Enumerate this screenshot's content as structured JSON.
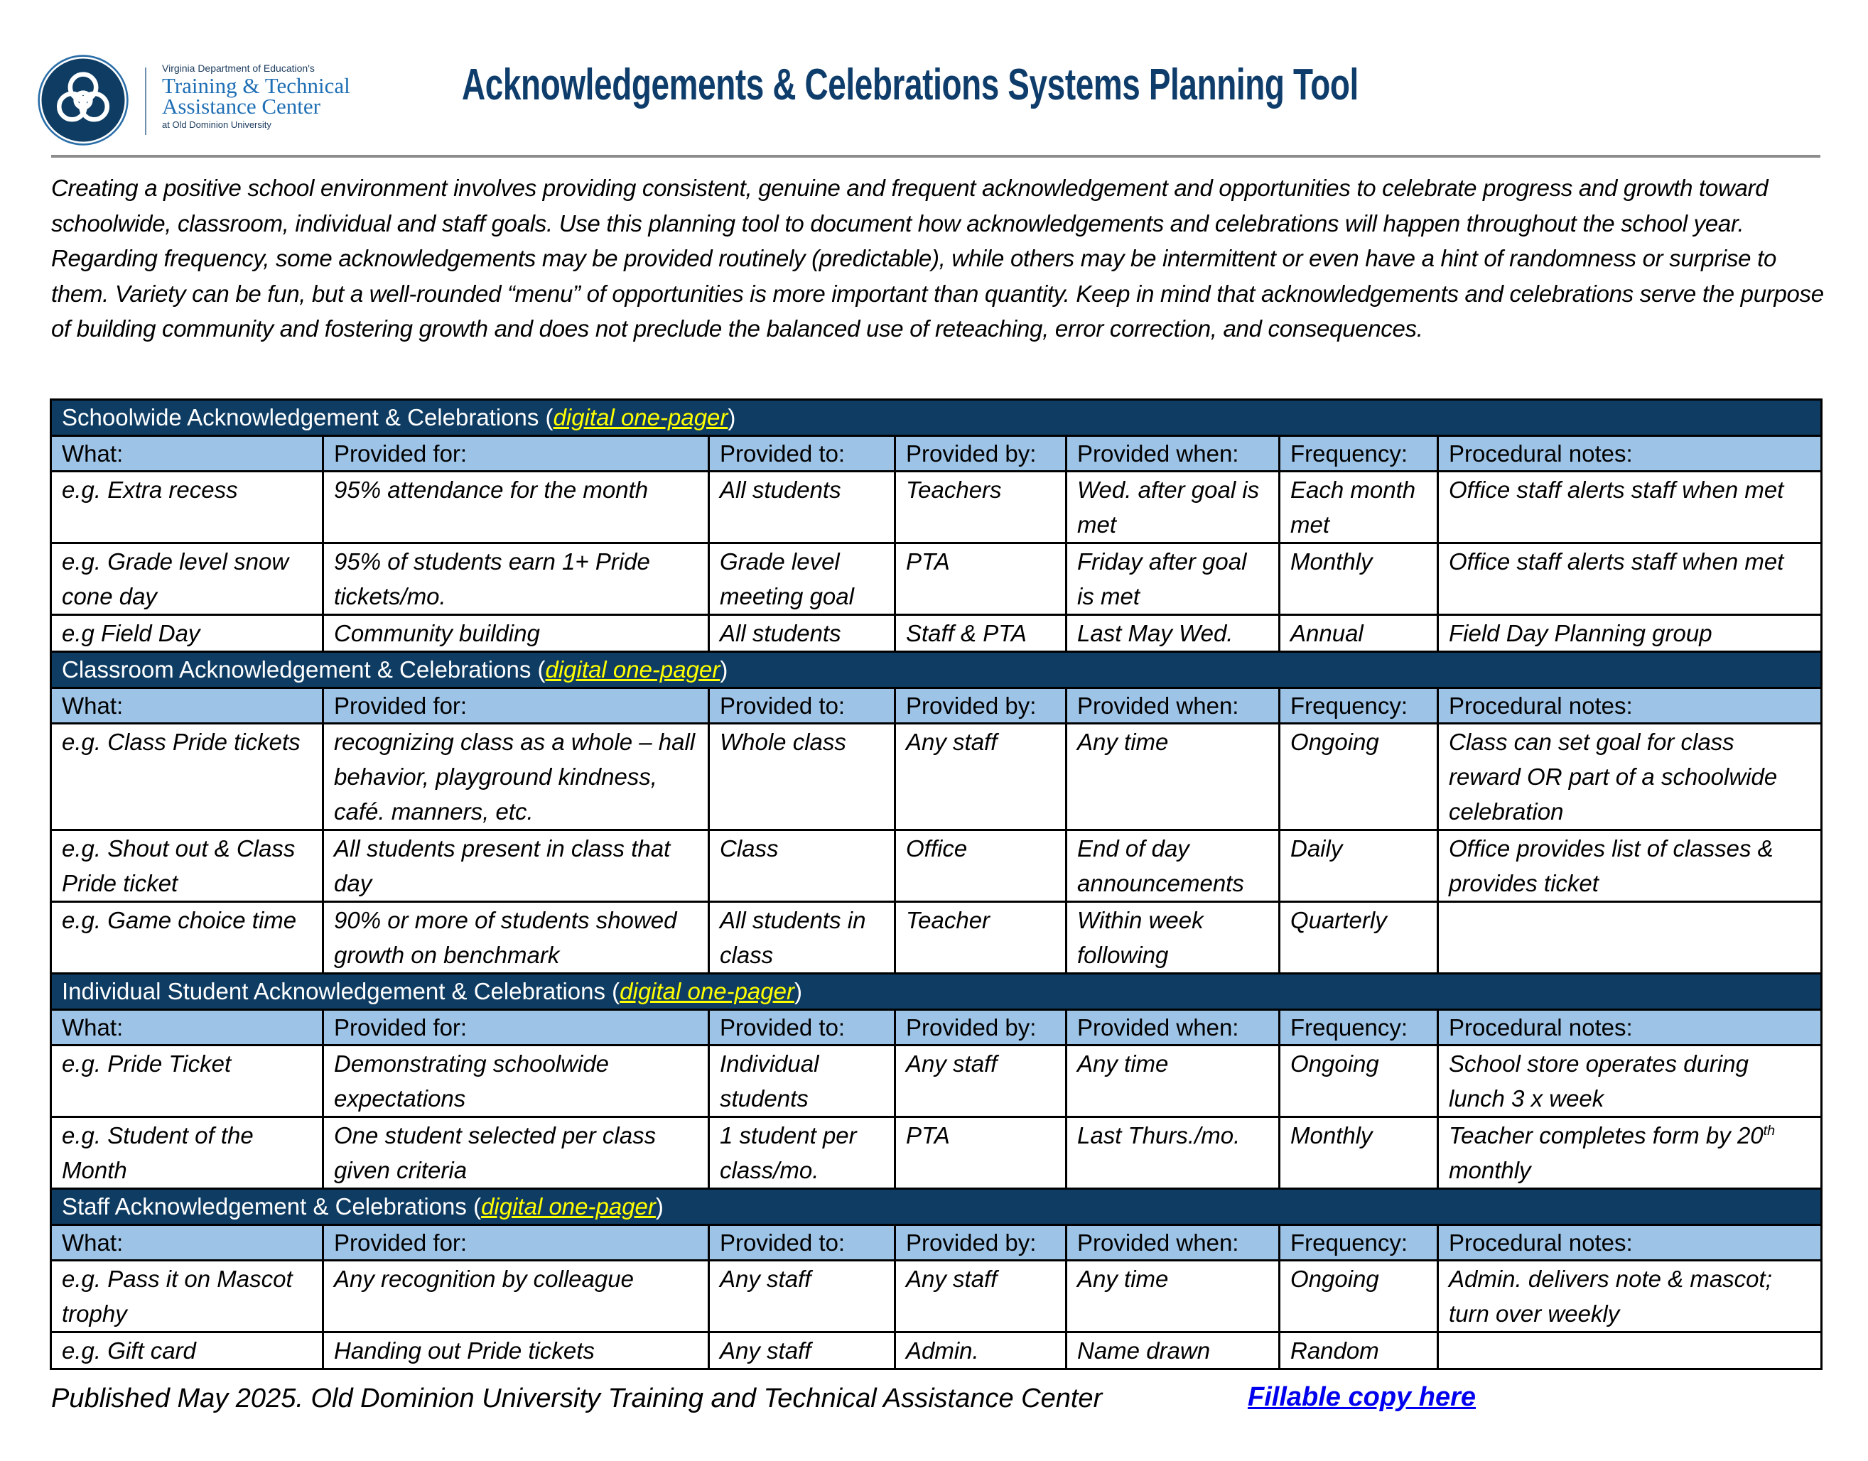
{
  "header": {
    "logo_pre": "Virginia Department of Education's",
    "logo_name_line1": "Training & Technical",
    "logo_name_line2": "Assistance Center",
    "logo_post": "at Old Dominion University",
    "title": "Acknowledgements & Celebrations Systems Planning Tool"
  },
  "intro": "Creating a positive school environment involves providing consistent, genuine and frequent acknowledgement and opportunities to celebrate progress and growth toward schoolwide, classroom, individual and staff goals. Use this planning tool to document how acknowledgements and celebrations will happen throughout the school year.  Regarding frequency, some acknowledgements may be provided routinely (predictable), while others may be intermittent or even have a hint of randomness or surprise to them.  Variety can be fun, but a well-rounded “menu” of opportunities is more important than quantity.  Keep in mind that acknowledgements and celebrations serve the purpose of building community and fostering growth and does not preclude the balanced use of reteaching, error correction, and consequences.",
  "colors": {
    "section_bg": "#0e3c63",
    "header_bg": "#9dc3e6",
    "link": "#ffff00",
    "title": "#0f3d6b"
  },
  "columns": [
    "What:",
    "Provided for:",
    "Provided to:",
    "Provided by:",
    "Provided when:",
    "Frequency:",
    "Procedural notes:"
  ],
  "sections": [
    {
      "title": "Schoolwide Acknowledgement & Celebrations (",
      "link": "digital one-pager",
      "close": ")",
      "rows": [
        [
          "e.g. Extra recess",
          "95% attendance for the month",
          "All students",
          "Teachers",
          "Wed. after goal is met",
          "Each month met",
          "Office staff alerts staff when met"
        ],
        [
          "e.g. Grade level snow cone day",
          "95% of students earn 1+ Pride tickets/mo.",
          "Grade level meeting goal",
          "PTA",
          "Friday after goal is met",
          "Monthly",
          "Office staff alerts staff when met"
        ],
        [
          "e.g Field Day",
          "Community building",
          "All students",
          "Staff & PTA",
          "Last May Wed.",
          "Annual",
          "Field Day Planning group"
        ]
      ]
    },
    {
      "title": "Classroom Acknowledgement & Celebrations (",
      "link": "digital one-pager",
      "close": ")",
      "rows": [
        [
          "e.g. Class Pride tickets",
          "recognizing class as a whole – hall behavior, playground kindness, café. manners, etc.",
          "Whole class",
          "Any staff",
          "Any time",
          "Ongoing",
          "Class can set goal for class reward OR part of a schoolwide celebration"
        ],
        [
          "e.g. Shout out & Class Pride ticket",
          "All students present in class that day",
          "Class",
          "Office",
          "End of day announcements",
          "Daily",
          "Office provides list of classes & provides ticket"
        ],
        [
          "e.g. Game choice time",
          "90% or more of students showed growth on benchmark",
          "All students in class",
          "Teacher",
          "Within week following",
          "Quarterly",
          ""
        ]
      ]
    },
    {
      "title": "Individual Student Acknowledgement & Celebrations (",
      "link": "digital one-pager",
      "close": ")",
      "rows": [
        [
          "e.g. Pride Ticket",
          "Demonstrating schoolwide expectations",
          "Individual students",
          "Any staff",
          "Any time",
          "Ongoing",
          "School store operates during lunch 3 x week"
        ],
        [
          "e.g. Student of the Month",
          "One student selected per class given criteria",
          "1 student per class/mo.",
          "PTA",
          "Last Thurs./mo.",
          "Monthly",
          "Teacher completes form by 20|th| monthly"
        ]
      ]
    },
    {
      "title": "Staff Acknowledgement & Celebrations (",
      "link": "digital one-pager",
      "close": ")",
      "rows": [
        [
          "e.g. Pass it on Mascot trophy",
          "Any recognition by colleague",
          "Any staff",
          "Any staff",
          "Any time",
          "Ongoing",
          "Admin. delivers note & mascot; turn over weekly"
        ],
        [
          "e.g. Gift card",
          "Handing out Pride tickets",
          "Any staff",
          "Admin.",
          "Name drawn",
          "Random",
          ""
        ]
      ]
    }
  ],
  "footer": {
    "published": "Published May 2025. Old Dominion University Training and Technical Assistance Center",
    "fillable_link": "Fillable copy here"
  }
}
